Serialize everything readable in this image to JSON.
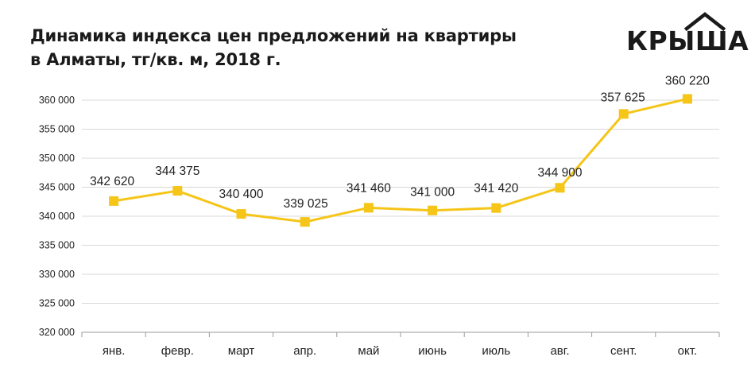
{
  "header": {
    "title_line1": "Динамика индекса цен предложений на квартиры",
    "title_line2": "в Алматы, тг/кв. м, 2018 г."
  },
  "logo": {
    "text": "КРЫША",
    "icon": "house-roof-icon"
  },
  "colors": {
    "line": "#f5c518",
    "marker": "#f5c518",
    "grid": "#d9d9d9",
    "axis": "#9a9a9a",
    "text": "#222222"
  },
  "chart_data": {
    "type": "line",
    "categories": [
      "янв.",
      "февр.",
      "март",
      "апр.",
      "май",
      "июнь",
      "июль",
      "авг.",
      "сент.",
      "окт."
    ],
    "series": [
      {
        "values": [
          342620,
          344375,
          340400,
          339025,
          341460,
          341000,
          341420,
          344900,
          357625,
          360220
        ]
      }
    ],
    "data_labels": [
      "342 620",
      "344 375",
      "340 400",
      "339 025",
      "341 460",
      "341 000",
      "341 420",
      "344 900",
      "357 625",
      "360 220"
    ],
    "y_ticks": [
      320000,
      325000,
      330000,
      335000,
      340000,
      345000,
      350000,
      355000,
      360000
    ],
    "y_tick_labels": [
      "320 000",
      "325 000",
      "330 000",
      "335 000",
      "340 000",
      "345 000",
      "350 000",
      "355 000",
      "360 000"
    ],
    "ylim": [
      320000,
      360000
    ],
    "grid": true,
    "legend": "none"
  }
}
